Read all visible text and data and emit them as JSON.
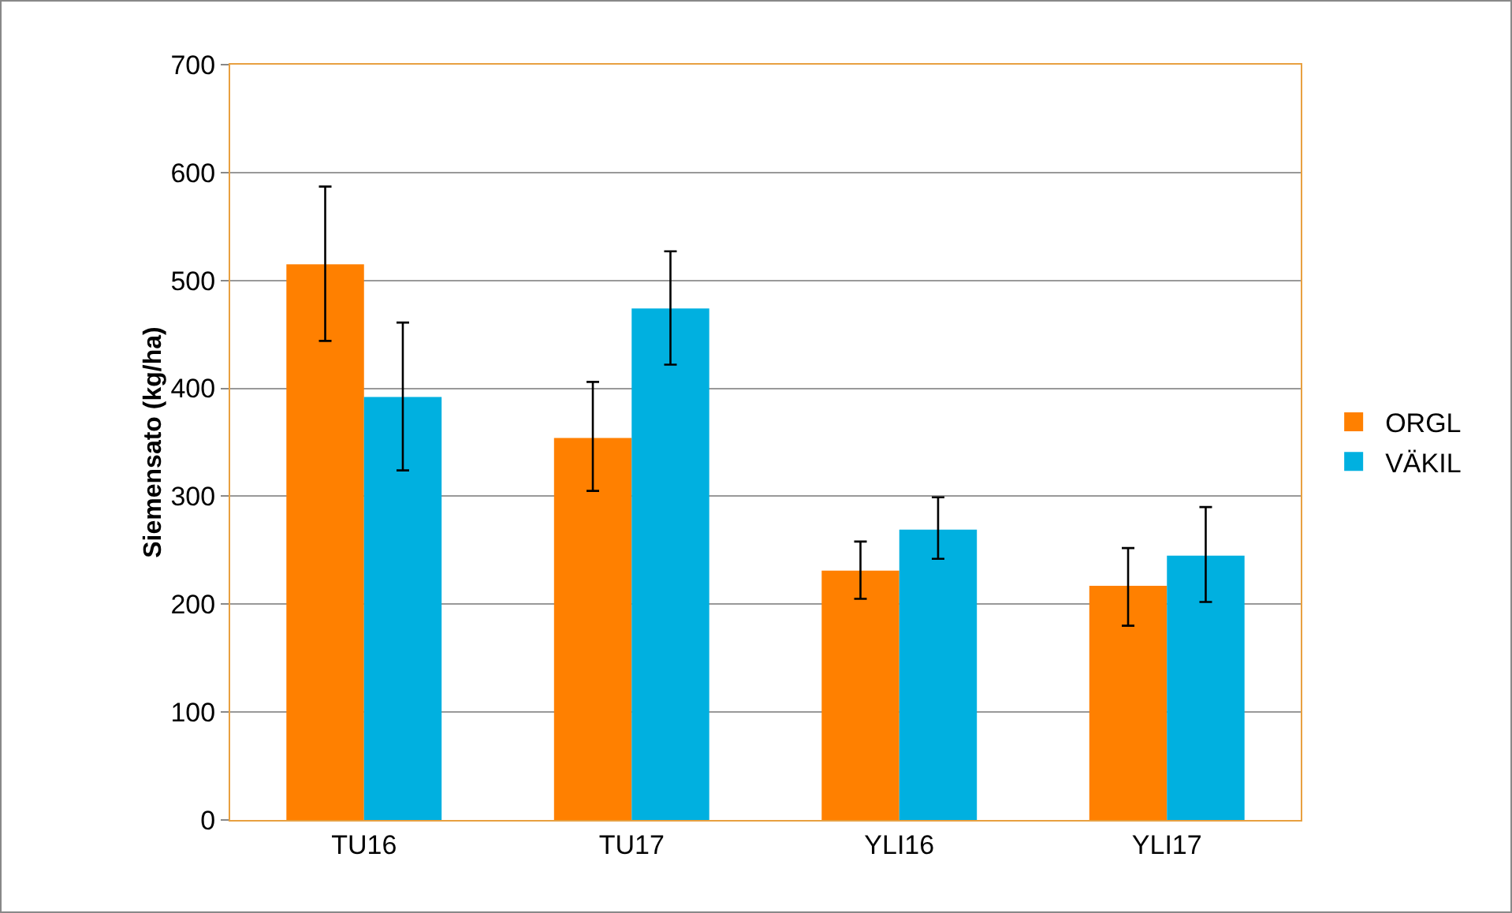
{
  "chart_data": {
    "type": "bar",
    "ylabel": "Siemensato (kg/ha)",
    "categories": [
      "TU16",
      "TU17",
      "YLI16",
      "YLI17"
    ],
    "series": [
      {
        "name": "ORGL",
        "color": "#ff8000",
        "values": [
          515,
          354,
          231,
          217
        ],
        "errors": [
          [
            444,
            587
          ],
          [
            305,
            406
          ],
          [
            205,
            258
          ],
          [
            180,
            252
          ]
        ]
      },
      {
        "name": "VÄKIL",
        "color": "#00b0e0",
        "values": [
          392,
          474,
          269,
          245
        ],
        "errors": [
          [
            324,
            461
          ],
          [
            422,
            527
          ],
          [
            242,
            299
          ],
          [
            202,
            290
          ]
        ]
      }
    ],
    "ylim": [
      0,
      700
    ],
    "yticks": [
      0,
      100,
      200,
      300,
      400,
      500,
      600,
      700
    ],
    "grid": "y",
    "legend": "right"
  }
}
